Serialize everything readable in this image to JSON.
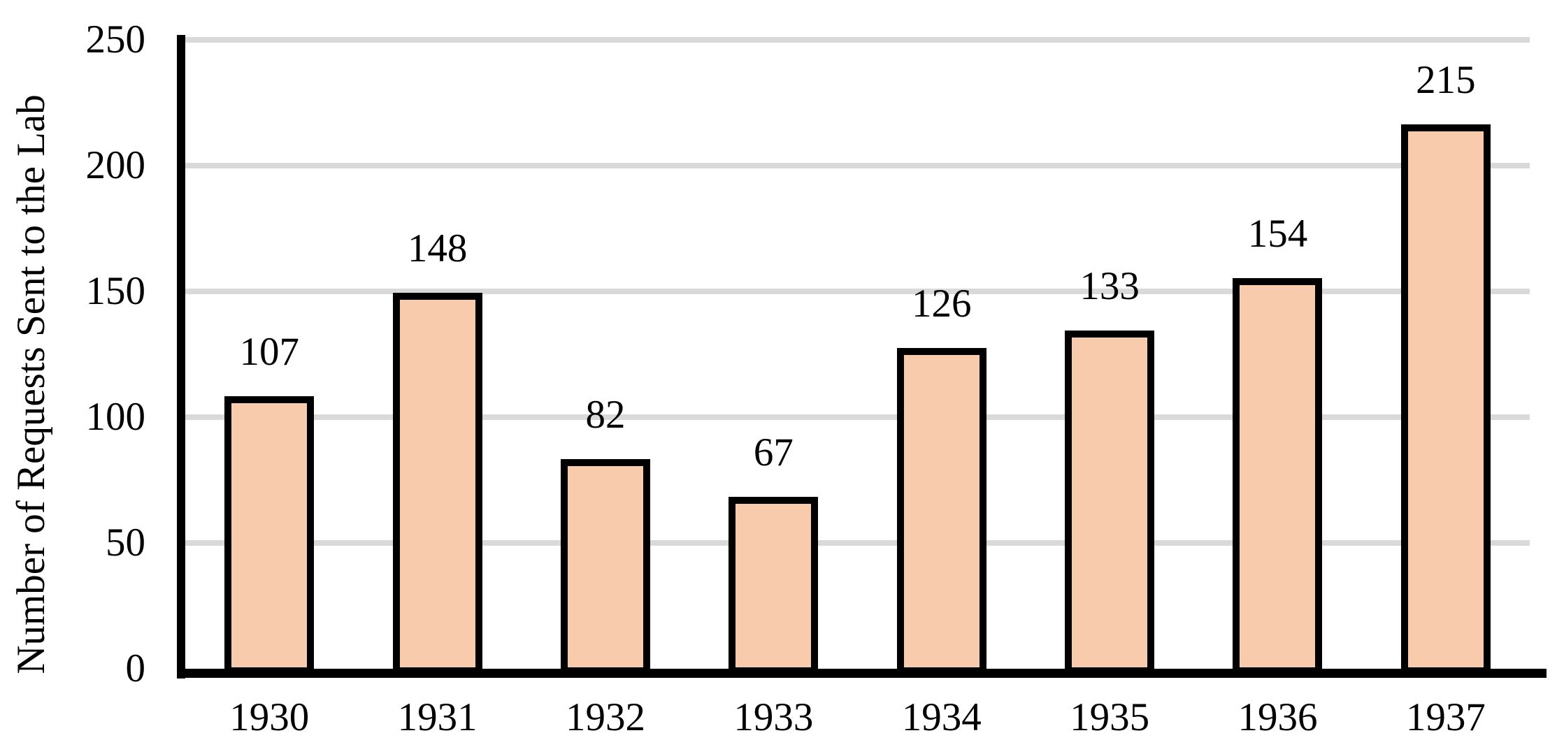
{
  "chart_data": {
    "type": "bar",
    "title": "",
    "categories": [
      "1930",
      "1931",
      "1932",
      "1933",
      "1934",
      "1935",
      "1936",
      "1937"
    ],
    "values": [
      107,
      148,
      82,
      67,
      126,
      133,
      154,
      215
    ],
    "xlabel": "",
    "ylabel": "Number of Requests Sent to the Lab",
    "ylim": [
      0,
      250
    ],
    "yticks": [
      0,
      50,
      100,
      150,
      200,
      250
    ],
    "grid": true,
    "legend_position": "none",
    "data_labels": true,
    "colors": {
      "bar_fill": "#F8CBAD",
      "bar_border": "#000000",
      "gridline": "#D9D9D9",
      "axis": "#000000",
      "text": "#000000",
      "background": "#FFFFFF"
    }
  }
}
